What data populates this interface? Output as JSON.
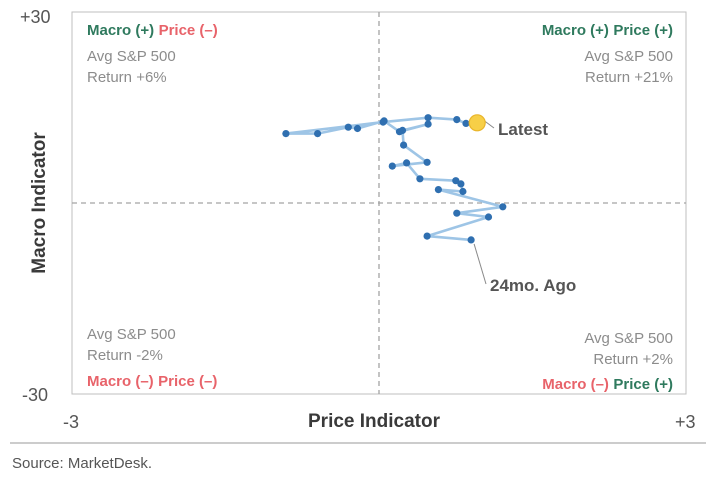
{
  "chart_data": {
    "type": "scatter",
    "xlabel": "Price Indicator",
    "ylabel": "Macro Indicator",
    "xlim": [
      -3,
      3
    ],
    "ylim": [
      -30,
      30
    ],
    "x_tick_labels": [
      "-3",
      "+3"
    ],
    "y_tick_labels": [
      "+30",
      "-30"
    ],
    "grid": false,
    "reference_lines": {
      "x": 0,
      "y": 0,
      "style": "dashed"
    },
    "quadrants": {
      "top_left": {
        "macro": "Macro (+)",
        "price": "Price (–)",
        "avg_label": "Avg S&P 500",
        "return_label": "Return +6%"
      },
      "top_right": {
        "macro": "Macro (+)",
        "price": "Price (+)",
        "avg_label": "Avg S&P 500",
        "return_label": "Return +21%"
      },
      "bottom_left": {
        "macro": "Macro (–)",
        "price": "Price (–)",
        "avg_label": "Avg S&P 500",
        "return_label": "Return -2%"
      },
      "bottom_right": {
        "macro": "Macro (–)",
        "price": "Price (+)",
        "avg_label": "Avg S&P 500",
        "return_label": "Return +2%"
      }
    },
    "annotations": {
      "latest": "Latest",
      "start": "24mo. Ago"
    },
    "points": [
      {
        "x": 0.9,
        "y": -5.8
      },
      {
        "x": 0.47,
        "y": -5.2
      },
      {
        "x": 1.07,
        "y": -2.2
      },
      {
        "x": 0.76,
        "y": -1.6
      },
      {
        "x": 1.21,
        "y": -0.6
      },
      {
        "x": 0.58,
        "y": 2.1
      },
      {
        "x": 0.82,
        "y": 1.8
      },
      {
        "x": 0.8,
        "y": 3.0
      },
      {
        "x": 0.75,
        "y": 3.5
      },
      {
        "x": 0.4,
        "y": 3.8
      },
      {
        "x": 0.27,
        "y": 6.3
      },
      {
        "x": 0.13,
        "y": 5.8
      },
      {
        "x": 0.47,
        "y": 6.4
      },
      {
        "x": 0.24,
        "y": 9.1
      },
      {
        "x": 0.23,
        "y": 11.4
      },
      {
        "x": 0.48,
        "y": 12.4
      },
      {
        "x": 0.2,
        "y": 11.2
      },
      {
        "x": 0.05,
        "y": 12.9
      },
      {
        "x": -0.21,
        "y": 11.7
      },
      {
        "x": -0.3,
        "y": 11.9
      },
      {
        "x": -0.6,
        "y": 10.9
      },
      {
        "x": -0.91,
        "y": 10.9
      },
      {
        "x": 0.04,
        "y": 12.7
      },
      {
        "x": 0.48,
        "y": 13.4
      },
      {
        "x": 0.76,
        "y": 13.1
      },
      {
        "x": 0.85,
        "y": 12.5
      },
      {
        "x": 0.96,
        "y": 12.6
      }
    ]
  },
  "source": "Source: MarketDesk.",
  "colors": {
    "series_line": "#9ec5e6",
    "marker": "#2f6fb0",
    "latest_fill": "#f7cf47",
    "latest_stroke": "#e9b52a",
    "refline": "#a3a3a3",
    "frame": "#bfbfbf"
  }
}
